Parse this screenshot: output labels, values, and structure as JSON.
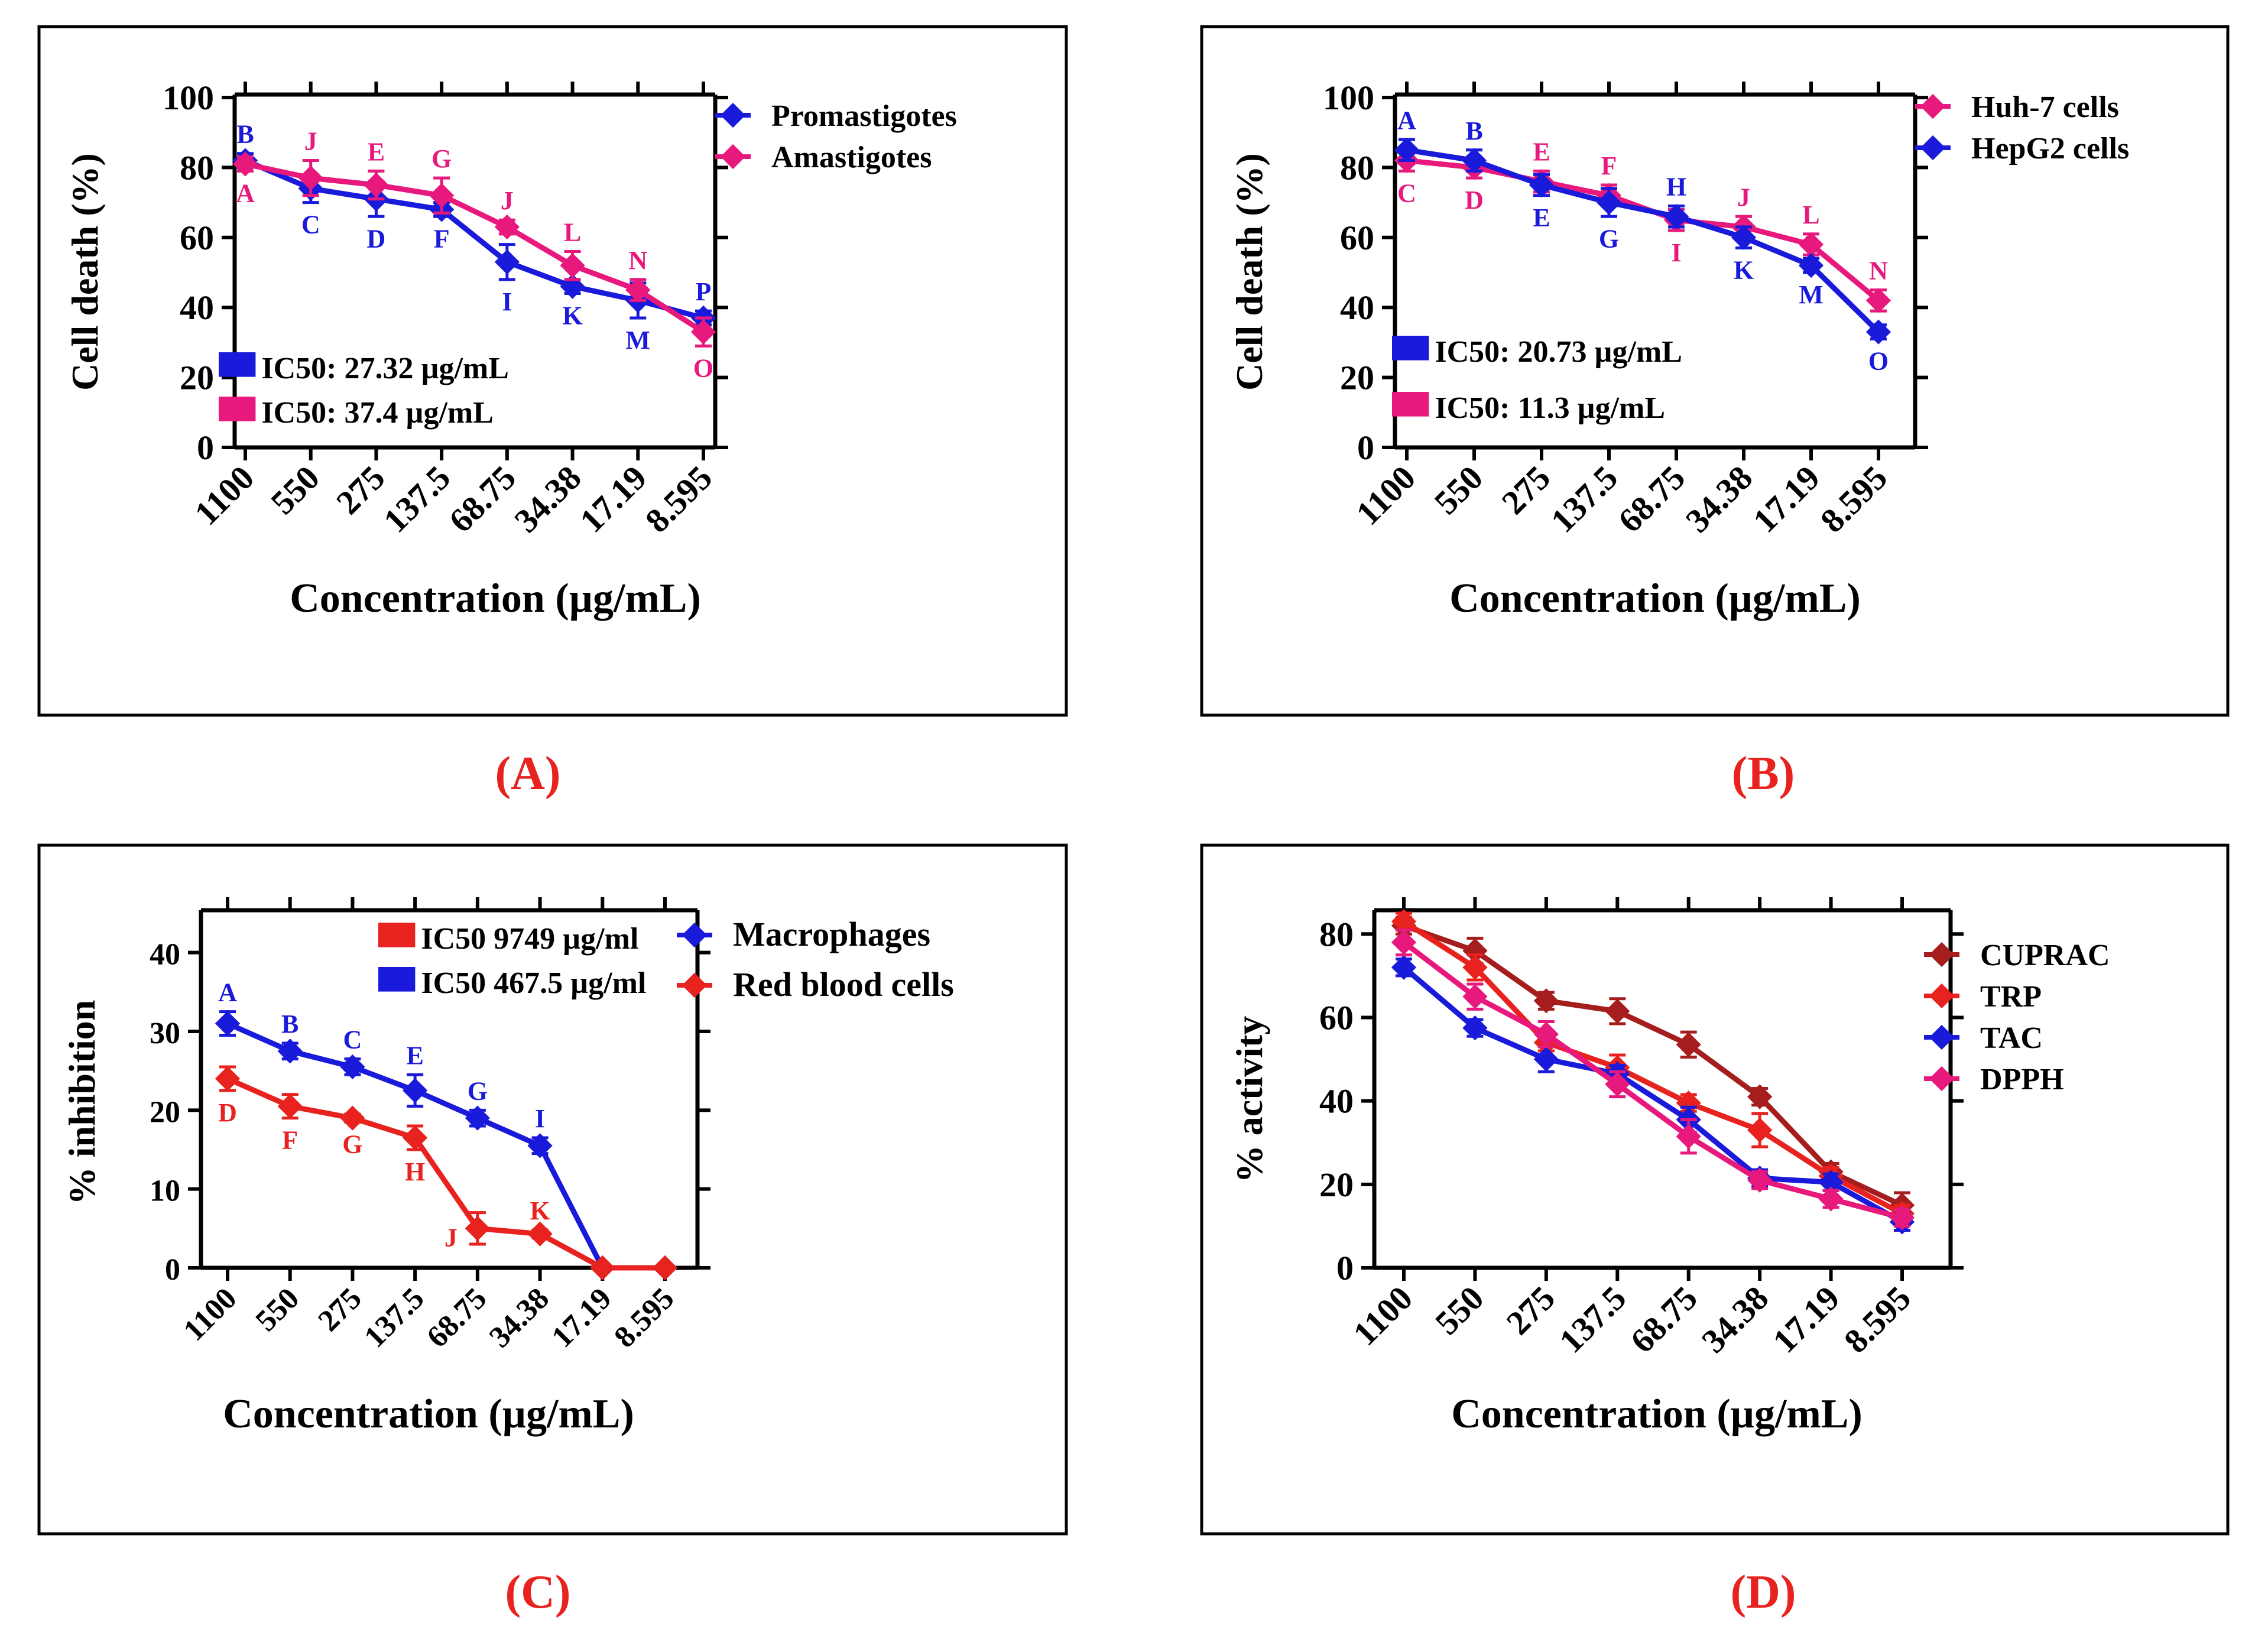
{
  "colors": {
    "blue": "#1a1adb",
    "pink": "#e8197c",
    "red": "#e8221f",
    "darkred": "#a51d1d",
    "black": "#000000"
  },
  "chart_data": [
    {
      "type": "line",
      "panel_label": "(A)",
      "ylabel": "Cell death (%)",
      "xlabel": "Concentration (µg/mL)",
      "categories": [
        "1100",
        "550",
        "275",
        "137.5",
        "68.75",
        "34.38",
        "17.19",
        "8.595"
      ],
      "yticks": [
        "0",
        "20",
        "40",
        "60",
        "80",
        "100"
      ],
      "ylim": [
        0,
        100
      ],
      "grid": false,
      "legend_position": "top-right outside",
      "series": [
        {
          "name": "Promastigotes",
          "color": "#1a1adb",
          "values": [
            82,
            74,
            71,
            68,
            53,
            46,
            42,
            37
          ],
          "errors": [
            2,
            4,
            5,
            2,
            5,
            2,
            5,
            2
          ],
          "letters": [
            "B",
            "C",
            "D",
            "F",
            "I",
            "K",
            "M",
            "P"
          ],
          "letter_pos": [
            "above",
            "below",
            "below",
            "below",
            "below",
            "below",
            "below",
            "above"
          ]
        },
        {
          "name": "Amastigotes",
          "color": "#e8197c",
          "values": [
            81,
            77,
            75,
            72,
            63,
            52,
            45,
            33
          ],
          "errors": [
            2,
            5,
            4,
            5,
            2,
            4,
            3,
            4
          ],
          "letters": [
            "A",
            "J",
            "E",
            "G",
            "J",
            "L",
            "N",
            "O"
          ],
          "letter_pos": [
            "below",
            "above",
            "above",
            "above",
            "above",
            "above",
            "above",
            "below"
          ]
        }
      ],
      "ic50_boxes": [
        {
          "text": "IC50: 27.32 µg/mL",
          "color": "#1a1adb"
        },
        {
          "text": "IC50: 37.4 µg/mL",
          "color": "#e8197c"
        }
      ]
    },
    {
      "type": "line",
      "panel_label": "(B)",
      "ylabel": "Cell death (%)",
      "xlabel": "Concentration (µg/mL)",
      "categories": [
        "1100",
        "550",
        "275",
        "137.5",
        "68.75",
        "34.38",
        "17.19",
        "8.595"
      ],
      "yticks": [
        "0",
        "20",
        "40",
        "60",
        "80",
        "100"
      ],
      "ylim": [
        0,
        100
      ],
      "grid": false,
      "legend_position": "top-right outside",
      "series": [
        {
          "name": "Huh-7 cells",
          "color": "#e8197c",
          "values": [
            82,
            80,
            76,
            72,
            65,
            63,
            58,
            42
          ],
          "errors": [
            3,
            3,
            3,
            3,
            3,
            3,
            3,
            3
          ],
          "letters": [
            "C",
            "D",
            "E",
            "F",
            "I",
            "J",
            "L",
            "N"
          ],
          "letter_pos": [
            "below",
            "below",
            "above",
            "above",
            "below",
            "above",
            "above",
            "above"
          ]
        },
        {
          "name": "HepG2 cells",
          "color": "#1a1adb",
          "values": [
            85,
            82,
            75,
            70,
            66,
            60,
            52,
            33
          ],
          "errors": [
            3,
            3,
            3,
            4,
            3,
            3,
            2,
            2
          ],
          "letters": [
            "A",
            "B",
            "E",
            "G",
            "H",
            "K",
            "M",
            "O"
          ],
          "letter_pos": [
            "above",
            "above",
            "below",
            "below",
            "above",
            "below",
            "below",
            "below"
          ]
        }
      ],
      "ic50_boxes": [
        {
          "text": "IC50: 20.73  µg/mL",
          "color": "#1a1adb"
        },
        {
          "text": "IC50: 11.3  µg/mL",
          "color": "#e8197c"
        }
      ]
    },
    {
      "type": "line",
      "panel_label": "(C)",
      "ylabel": "% inhibition",
      "xlabel": "Concentration (µg/mL)",
      "categories": [
        "1100",
        "550",
        "275",
        "137.5",
        "68.75",
        "34.38",
        "17.19",
        "8.595"
      ],
      "yticks": [
        "0",
        "10",
        "20",
        "30",
        "40"
      ],
      "ylim": [
        0,
        45
      ],
      "grid": false,
      "legend_position": "top-right outside",
      "series": [
        {
          "name": "Macrophages",
          "color": "#1a1adb",
          "values": [
            31,
            27.5,
            25.5,
            22.5,
            19,
            15.5,
            0,
            0
          ],
          "errors": [
            1.5,
            1,
            1,
            2,
            1,
            1,
            0,
            0
          ],
          "letters": [
            "A",
            "B",
            "C",
            "E",
            "G",
            "I",
            "",
            ""
          ],
          "letter_pos": [
            "above",
            "above",
            "above",
            "above",
            "above",
            "above",
            "above",
            "above"
          ]
        },
        {
          "name": "Red blood cells",
          "color": "#e8221f",
          "values": [
            24,
            20.5,
            19,
            16.5,
            5,
            4.3,
            0,
            0
          ],
          "errors": [
            1.5,
            1.5,
            0.5,
            1.5,
            2,
            0.5,
            0,
            0
          ],
          "letters": [
            "D",
            "F",
            "G",
            "H",
            "J",
            "K",
            "",
            ""
          ],
          "letter_pos": [
            "below",
            "below",
            "below",
            "below",
            "left",
            "above",
            "below",
            "below"
          ]
        }
      ],
      "ic50_boxes": [
        {
          "text": "IC50 9749 µg/ml",
          "color": "#e8221f"
        },
        {
          "text": "IC50 467.5 µg/ml",
          "color": "#1a1adb"
        }
      ]
    },
    {
      "type": "line",
      "panel_label": "(D)",
      "ylabel": "% activity",
      "xlabel": "Concentration (µg/mL)",
      "categories": [
        "1100",
        "550",
        "275",
        "137.5",
        "68.75",
        "34.38",
        "17.19",
        "8.595"
      ],
      "yticks": [
        "0",
        "20",
        "40",
        "60",
        "80"
      ],
      "ylim": [
        0,
        85
      ],
      "grid": false,
      "legend_position": "right outside",
      "series": [
        {
          "name": "CUPRAC",
          "color": "#a51d1d",
          "values": [
            82,
            76,
            64,
            61.5,
            53.5,
            41,
            23,
            15
          ],
          "errors": [
            2,
            3,
            2,
            3,
            3,
            2,
            2,
            3
          ]
        },
        {
          "name": "TRP",
          "color": "#e8221f",
          "values": [
            83,
            72,
            54,
            48,
            39.5,
            33,
            22,
            13
          ],
          "errors": [
            2,
            3,
            2,
            3,
            2,
            4,
            2,
            2
          ]
        },
        {
          "name": "TAC",
          "color": "#1a1adb",
          "values": [
            72,
            57.5,
            50,
            46.5,
            35.5,
            21.5,
            20.5,
            11
          ],
          "errors": [
            2,
            2,
            3,
            2,
            3,
            2,
            2,
            2
          ]
        },
        {
          "name": "DPPH",
          "color": "#e8197c",
          "values": [
            78,
            65,
            56,
            44,
            31.5,
            21,
            16.5,
            12
          ],
          "errors": [
            3,
            3,
            3,
            3,
            4,
            2,
            2,
            2
          ]
        }
      ]
    }
  ]
}
